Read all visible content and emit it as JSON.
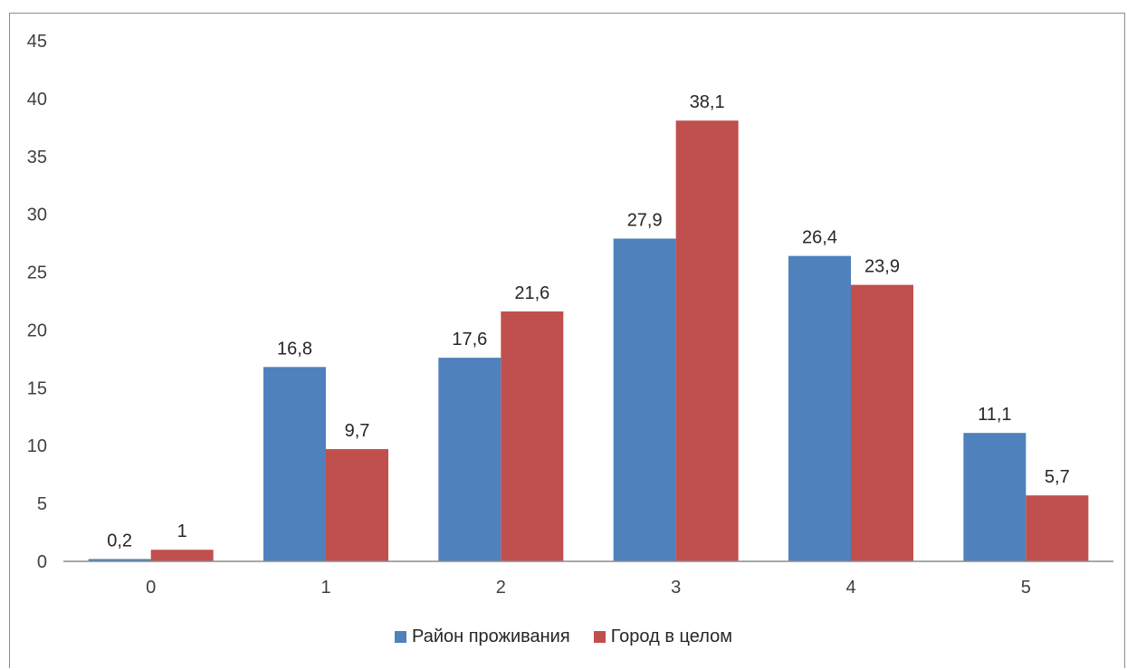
{
  "chart_data": {
    "type": "bar",
    "categories": [
      "0",
      "1",
      "2",
      "3",
      "4",
      "5"
    ],
    "series": [
      {
        "name": "Район проживания",
        "color": "#4f81bd",
        "values": [
          0.2,
          16.8,
          17.6,
          27.9,
          26.4,
          11.1
        ],
        "labels": [
          "0,2",
          "16,8",
          "17,6",
          "27,9",
          "26,4",
          "11,1"
        ]
      },
      {
        "name": "Город в целом",
        "color": "#c0504d",
        "values": [
          1,
          9.7,
          21.6,
          38.1,
          23.9,
          5.7
        ],
        "labels": [
          "1",
          "9,7",
          "21,6",
          "38,1",
          "23,9",
          "5,7"
        ]
      }
    ],
    "ylim": [
      0,
      45
    ],
    "yticks": [
      "0",
      "5",
      "10",
      "15",
      "20",
      "25",
      "30",
      "35",
      "40",
      "45"
    ],
    "grid": false,
    "legend_position": "bottom"
  }
}
